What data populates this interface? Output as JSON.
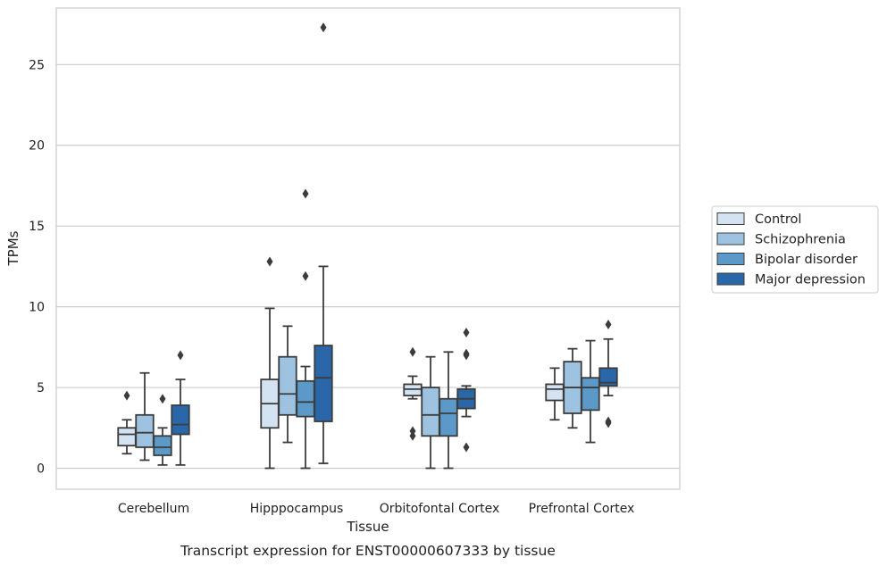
{
  "chart_data": {
    "type": "box",
    "caption": "Transcript expression for ENST00000607333 by tissue",
    "xlabel": "Tissue",
    "ylabel": "TPMs",
    "ylim": [
      -1.3,
      28.5
    ],
    "yticks": [
      "0",
      "5",
      "10",
      "15",
      "20",
      "25"
    ],
    "grid": "horizontal",
    "legend_position": "right",
    "categories": [
      "Cerebellum",
      "Hipppocampus",
      "Orbitofontal Cortex",
      "Prefrontal Cortex"
    ],
    "series": [
      {
        "name": "Control",
        "color": "#d4e3f2",
        "boxes": [
          {
            "whislo": 0.9,
            "q1": 1.4,
            "med": 2.1,
            "q3": 2.5,
            "whishi": 3.0,
            "fliers": [
              4.5
            ]
          },
          {
            "whislo": 0.0,
            "q1": 2.5,
            "med": 4.0,
            "q3": 5.5,
            "whishi": 9.9,
            "fliers": [
              12.8
            ]
          },
          {
            "whislo": 4.3,
            "q1": 4.5,
            "med": 4.9,
            "q3": 5.2,
            "whishi": 5.7,
            "fliers": [
              7.2,
              2.3,
              2.0
            ]
          },
          {
            "whislo": 3.0,
            "q1": 4.2,
            "med": 4.9,
            "q3": 5.2,
            "whishi": 6.2,
            "fliers": []
          }
        ]
      },
      {
        "name": "Schizophrenia",
        "color": "#9dc3e0",
        "boxes": [
          {
            "whislo": 0.5,
            "q1": 1.3,
            "med": 2.2,
            "q3": 3.3,
            "whishi": 5.9,
            "fliers": []
          },
          {
            "whislo": 1.6,
            "q1": 3.3,
            "med": 4.6,
            "q3": 6.9,
            "whishi": 8.8,
            "fliers": []
          },
          {
            "whislo": 0.0,
            "q1": 2.0,
            "med": 3.3,
            "q3": 5.0,
            "whishi": 6.9,
            "fliers": []
          },
          {
            "whislo": 2.5,
            "q1": 3.4,
            "med": 5.0,
            "q3": 6.6,
            "whishi": 7.4,
            "fliers": []
          }
        ]
      },
      {
        "name": "Bipolar disorder",
        "color": "#5b9ac8",
        "boxes": [
          {
            "whislo": 0.2,
            "q1": 0.8,
            "med": 1.3,
            "q3": 2.0,
            "whishi": 2.5,
            "fliers": [
              4.3
            ]
          },
          {
            "whislo": 0.0,
            "q1": 3.2,
            "med": 4.1,
            "q3": 5.4,
            "whishi": 6.3,
            "fliers": [
              17.0,
              11.9
            ]
          },
          {
            "whislo": 0.0,
            "q1": 2.0,
            "med": 3.4,
            "q3": 4.3,
            "whishi": 7.2,
            "fliers": []
          },
          {
            "whislo": 1.6,
            "q1": 3.6,
            "med": 5.0,
            "q3": 5.6,
            "whishi": 7.9,
            "fliers": []
          }
        ]
      },
      {
        "name": "Major depression",
        "color": "#2a67a8",
        "boxes": [
          {
            "whislo": 0.2,
            "q1": 2.1,
            "med": 2.7,
            "q3": 3.9,
            "whishi": 5.5,
            "fliers": [
              7.0
            ]
          },
          {
            "whislo": 0.3,
            "q1": 2.9,
            "med": 5.6,
            "q3": 7.6,
            "whishi": 12.5,
            "fliers": [
              27.3
            ]
          },
          {
            "whislo": 3.2,
            "q1": 3.7,
            "med": 4.3,
            "q3": 4.9,
            "whishi": 5.1,
            "fliers": [
              8.4,
              7.1,
              7.0,
              1.3
            ]
          },
          {
            "whislo": 4.5,
            "q1": 5.1,
            "med": 5.3,
            "q3": 6.2,
            "whishi": 8.0,
            "fliers": [
              8.9,
              2.9,
              2.8
            ]
          }
        ]
      }
    ]
  }
}
